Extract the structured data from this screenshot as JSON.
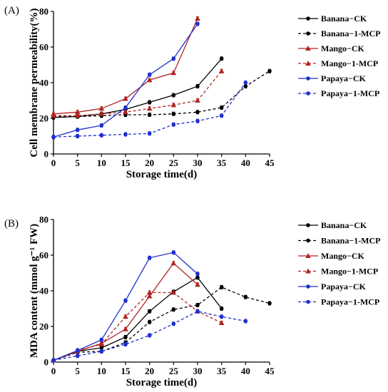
{
  "chart_data": [
    {
      "type": "line",
      "panel_label": "(A)",
      "xlabel": "Storage time(d)",
      "ylabel": "Cell membrane permeability(%)",
      "xlim": [
        0,
        45
      ],
      "ylim": [
        0,
        80
      ],
      "xticks": [
        0,
        5,
        10,
        15,
        20,
        25,
        30,
        35,
        40,
        45
      ],
      "yticks": [
        0,
        20,
        40,
        60,
        80
      ],
      "legend_position": "right",
      "series": [
        {
          "name": "Banana−CK",
          "color": "#000000",
          "dashed": false,
          "marker": "circle",
          "x": [
            0,
            5,
            10,
            15,
            20,
            25,
            30,
            35
          ],
          "y": [
            20.5,
            21,
            22.5,
            25,
            29,
            33,
            38,
            53.5
          ]
        },
        {
          "name": "Banana−1-MCP",
          "color": "#000000",
          "dashed": true,
          "marker": "circle",
          "x": [
            0,
            5,
            10,
            15,
            20,
            25,
            30,
            35,
            40,
            45
          ],
          "y": [
            21,
            21,
            21.5,
            22,
            22,
            22.5,
            23.5,
            26,
            38,
            46.5
          ]
        },
        {
          "name": "Mango−CK",
          "color": "#b22222",
          "dashed": false,
          "marker": "triangle",
          "x": [
            0,
            5,
            10,
            15,
            20,
            25,
            30
          ],
          "y": [
            22.5,
            23.5,
            25.5,
            31,
            41.5,
            45.5,
            76
          ]
        },
        {
          "name": "Mango−1-MCP",
          "color": "#b22222",
          "dashed": true,
          "marker": "triangle",
          "x": [
            0,
            5,
            10,
            15,
            20,
            25,
            30,
            35
          ],
          "y": [
            21.5,
            21.5,
            22.5,
            23.5,
            25.5,
            27.5,
            30,
            46.5
          ]
        },
        {
          "name": "Papaya−CK",
          "color": "#1f2ecc",
          "dashed": false,
          "marker": "circle",
          "x": [
            0,
            5,
            10,
            15,
            20,
            25,
            30
          ],
          "y": [
            9.5,
            13.5,
            16,
            26,
            44.5,
            53.5,
            73
          ]
        },
        {
          "name": "Papaya−1-MCP",
          "color": "#1f2ecc",
          "dashed": true,
          "marker": "circle",
          "x": [
            0,
            5,
            10,
            15,
            20,
            25,
            30,
            35,
            40
          ],
          "y": [
            9.5,
            10,
            10.5,
            11,
            11.5,
            16.5,
            18.5,
            21.5,
            40
          ]
        }
      ]
    },
    {
      "type": "line",
      "panel_label": "(B)",
      "xlabel": "Storage time(d)",
      "ylabel": "MDA content (mmol g⁻¹ FW)",
      "xlim": [
        0,
        45
      ],
      "ylim": [
        0,
        80
      ],
      "xticks": [
        0,
        5,
        10,
        15,
        20,
        25,
        30,
        35,
        40,
        45
      ],
      "yticks": [
        0,
        20,
        40,
        60,
        80
      ],
      "legend_position": "right",
      "series": [
        {
          "name": "Banana−CK",
          "color": "#000000",
          "dashed": false,
          "marker": "circle",
          "x": [
            0,
            5,
            10,
            15,
            20,
            25,
            30,
            35
          ],
          "y": [
            1,
            6,
            8,
            14,
            28.5,
            39.5,
            47.5,
            30
          ]
        },
        {
          "name": "Banana−1-MCP",
          "color": "#000000",
          "dashed": true,
          "marker": "circle",
          "x": [
            0,
            5,
            10,
            15,
            20,
            25,
            30,
            35,
            40,
            45
          ],
          "y": [
            1,
            5.5,
            6,
            11,
            22.5,
            29.5,
            32,
            42,
            36.5,
            33
          ]
        },
        {
          "name": "Mango−CK",
          "color": "#b22222",
          "dashed": false,
          "marker": "triangle",
          "x": [
            0,
            5,
            10,
            15,
            20,
            25,
            30
          ],
          "y": [
            1,
            6,
            10.5,
            18.5,
            37,
            55.5,
            43.5
          ]
        },
        {
          "name": "Mango−1-MCP",
          "color": "#b22222",
          "dashed": true,
          "marker": "triangle",
          "x": [
            0,
            5,
            10,
            15,
            20,
            25,
            30,
            35
          ],
          "y": [
            1,
            6.5,
            10,
            25.5,
            39,
            39,
            28.5,
            22
          ]
        },
        {
          "name": "Papaya−CK",
          "color": "#1f2ecc",
          "dashed": false,
          "marker": "circle",
          "x": [
            0,
            5,
            10,
            15,
            20,
            25,
            30
          ],
          "y": [
            1,
            6.5,
            12.5,
            34.5,
            58.5,
            61.5,
            49.5
          ]
        },
        {
          "name": "Papaya−1-MCP",
          "color": "#1f2ecc",
          "dashed": true,
          "marker": "circle",
          "x": [
            0,
            5,
            10,
            15,
            20,
            25,
            30,
            35,
            40
          ],
          "y": [
            1,
            3.5,
            6,
            10,
            15,
            21.5,
            28.5,
            25.5,
            23
          ]
        }
      ]
    }
  ]
}
